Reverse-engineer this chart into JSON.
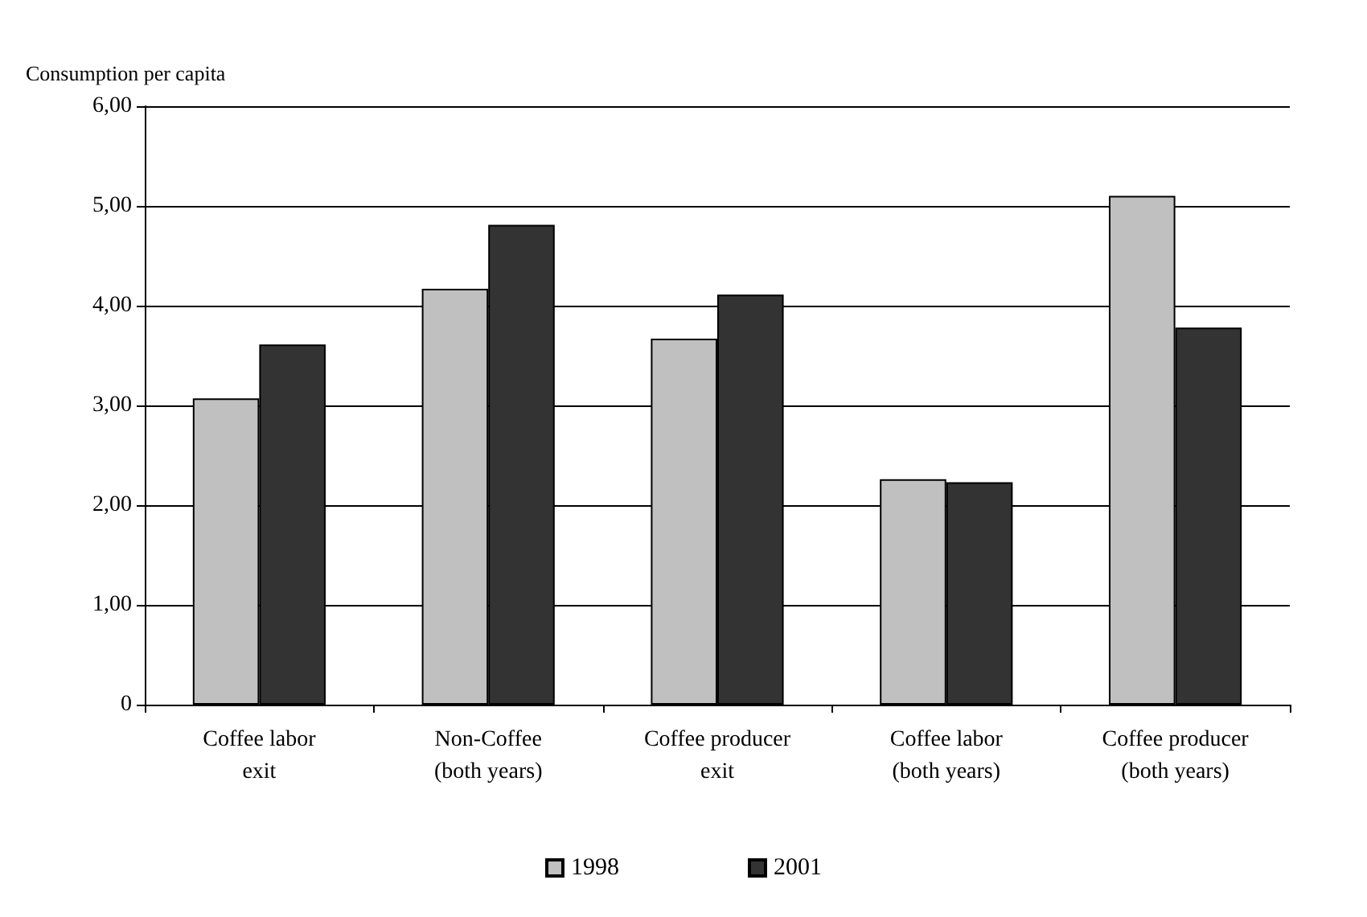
{
  "chart_data": {
    "type": "bar",
    "ylabel": "Consumption per capita",
    "categories": [
      "Coffee labor\nexit",
      "Non-Coffee\n(both years)",
      "Coffee producer\nexit",
      "Coffee labor\n(both years)",
      "Coffee producer\n(both years)"
    ],
    "series": [
      {
        "name": "1998",
        "color": "#c0c0c0",
        "values": [
          3.07,
          4.17,
          3.67,
          2.26,
          5.1
        ]
      },
      {
        "name": "2001",
        "color": "#333333",
        "values": [
          3.61,
          4.81,
          4.11,
          2.23,
          3.78
        ]
      }
    ],
    "ylim": [
      0,
      6
    ],
    "yticks": [
      0,
      {
        "value": 1,
        "label": "1,00"
      },
      {
        "value": 2,
        "label": "2,00"
      },
      {
        "value": 3,
        "label": "3,00"
      },
      {
        "value": 4,
        "label": "4,00"
      },
      {
        "value": 5,
        "label": "5,00"
      },
      {
        "value": 6,
        "label": "6,00"
      }
    ],
    "grid": "y",
    "legend": "bottom"
  }
}
